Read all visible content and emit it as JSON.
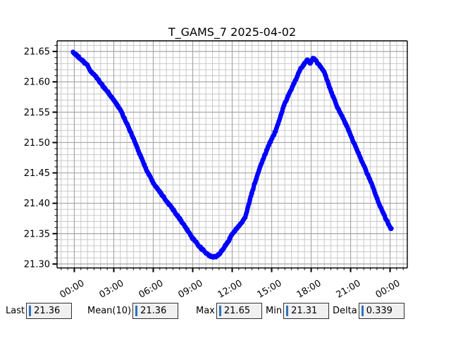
{
  "figure": {
    "background": "#ffffff"
  },
  "chart_data": {
    "type": "scatter",
    "title": "T_GAMS_7 2025-04-02",
    "xlabel": "",
    "ylabel": "",
    "x_tick_hours": [
      0,
      3,
      6,
      9,
      12,
      15,
      18,
      21,
      24
    ],
    "x_tick_labels": [
      "00:00",
      "03:00",
      "06:00",
      "09:00",
      "12:00",
      "15:00",
      "18:00",
      "21:00",
      "00:00"
    ],
    "x_minor_step_hours": 0.5,
    "xlim_hours": [
      -1.31,
      25.31
    ],
    "y_ticks": [
      21.3,
      21.35,
      21.4,
      21.45,
      21.5,
      21.55,
      21.6,
      21.65
    ],
    "y_tick_labels": [
      "21.30",
      "21.35",
      "21.40",
      "21.45",
      "21.50",
      "21.55",
      "21.60",
      "21.65"
    ],
    "y_minor_step": 0.01,
    "ylim": [
      21.2935,
      21.6675
    ],
    "grid": {
      "major_color": "#a8a8a8",
      "minor_color": "#c9c9c9",
      "visible": "both"
    },
    "series": [
      {
        "name": "T_GAMS_7",
        "color": "#0000ff",
        "marker": "circle",
        "marker_radius": 3.3,
        "sample_minutes": 2,
        "keypoints": [
          [
            -0.1,
            21.649
          ],
          [
            0.3,
            21.641
          ],
          [
            0.7,
            21.633
          ],
          [
            1.0,
            21.627
          ],
          [
            1.25,
            21.617
          ],
          [
            1.6,
            21.61
          ],
          [
            2.0,
            21.598
          ],
          [
            2.5,
            21.584
          ],
          [
            3.0,
            21.57
          ],
          [
            3.5,
            21.554
          ],
          [
            4.0,
            21.531
          ],
          [
            4.5,
            21.506
          ],
          [
            5.0,
            21.48
          ],
          [
            5.5,
            21.454
          ],
          [
            6.0,
            21.434
          ],
          [
            6.5,
            21.419
          ],
          [
            7.0,
            21.404
          ],
          [
            7.5,
            21.39
          ],
          [
            8.0,
            21.375
          ],
          [
            8.5,
            21.359
          ],
          [
            9.0,
            21.342
          ],
          [
            9.5,
            21.329
          ],
          [
            10.0,
            21.318
          ],
          [
            10.4,
            21.312
          ],
          [
            10.8,
            21.312
          ],
          [
            11.2,
            21.321
          ],
          [
            11.7,
            21.337
          ],
          [
            12.0,
            21.35
          ],
          [
            12.5,
            21.362
          ],
          [
            13.0,
            21.377
          ],
          [
            13.4,
            21.41
          ],
          [
            13.7,
            21.432
          ],
          [
            14.2,
            21.464
          ],
          [
            14.8,
            21.497
          ],
          [
            15.3,
            21.519
          ],
          [
            16.0,
            21.565
          ],
          [
            16.6,
            21.593
          ],
          [
            17.2,
            21.621
          ],
          [
            17.7,
            21.636
          ],
          [
            17.95,
            21.631
          ],
          [
            18.15,
            21.64
          ],
          [
            18.5,
            21.631
          ],
          [
            19.0,
            21.616
          ],
          [
            19.5,
            21.585
          ],
          [
            20.0,
            21.558
          ],
          [
            20.8,
            21.523
          ],
          [
            21.2,
            21.502
          ],
          [
            21.9,
            21.467
          ],
          [
            22.6,
            21.432
          ],
          [
            23.2,
            21.397
          ],
          [
            23.7,
            21.373
          ],
          [
            24.1,
            21.357
          ]
        ]
      }
    ]
  },
  "stats_bar": {
    "entry_background": "#f0f0f0",
    "cursor_color": "#2e72bd",
    "items": [
      {
        "label": "Last",
        "value": "21.36"
      },
      {
        "label": "Mean(10)",
        "value": "21.36"
      },
      {
        "label": "Max",
        "value": "21.65"
      },
      {
        "label": "Min",
        "value": "21.31"
      },
      {
        "label": "Delta",
        "value": "0.339"
      }
    ]
  }
}
